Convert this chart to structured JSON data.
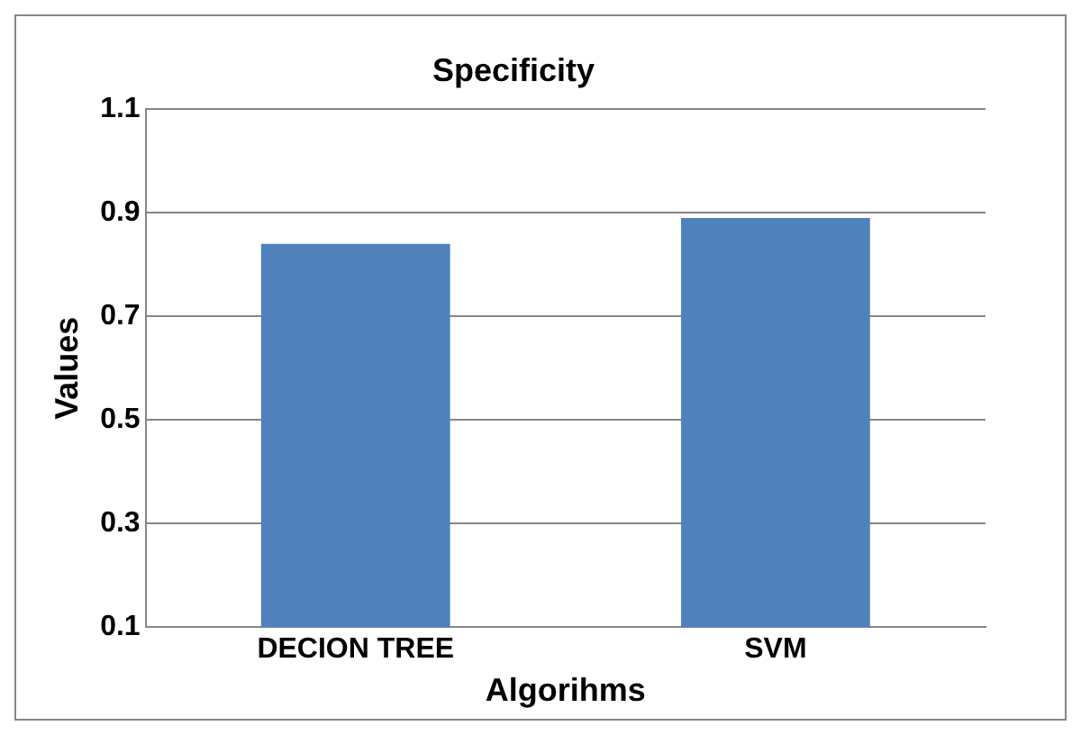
{
  "chart_data": {
    "type": "bar",
    "title": "Specificity",
    "xlabel": "Algorihms",
    "ylabel": "Values",
    "categories": [
      "DECION TREE",
      "SVM"
    ],
    "values": [
      0.84,
      0.89
    ],
    "color": "#4f81bd",
    "ylim": [
      0.1,
      1.1
    ],
    "yticks": [
      0.1,
      0.3,
      0.5,
      0.7,
      0.9,
      1.1
    ],
    "grid": "y",
    "legend": false
  }
}
